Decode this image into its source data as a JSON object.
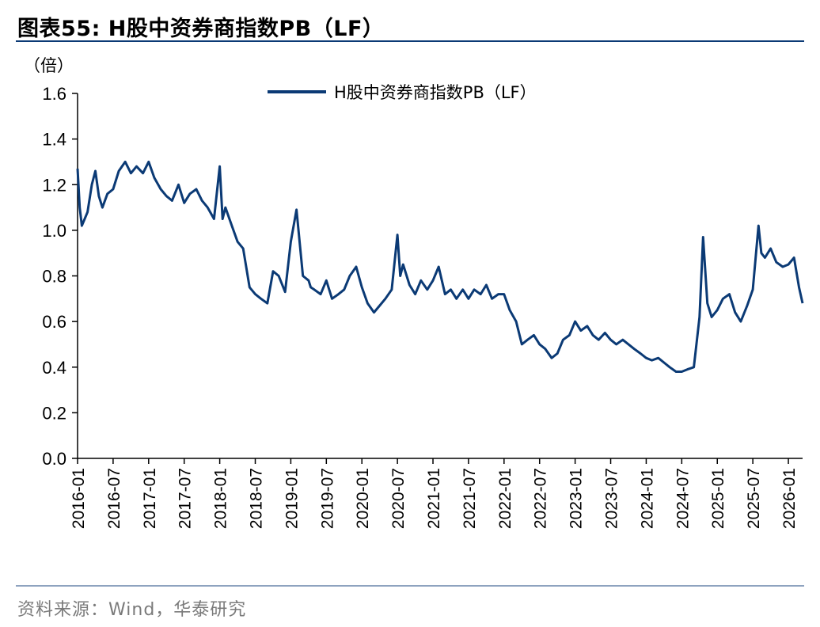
{
  "figure": {
    "title": "图表55:  H股中资券商指数PB（LF）",
    "source": "资料来源：Wind，华泰研究"
  },
  "chart_data": {
    "type": "line",
    "title": "H股中资券商指数PB（LF）",
    "ylabel": "（倍）",
    "xlabel": "",
    "ylim": [
      0.0,
      1.6
    ],
    "y_ticks": [
      "0.0",
      "0.2",
      "0.4",
      "0.6",
      "0.8",
      "1.0",
      "1.2",
      "1.4",
      "1.6"
    ],
    "x_ticks": [
      "2016-01",
      "2016-07",
      "2017-01",
      "2017-07",
      "2018-01",
      "2018-07",
      "2019-01",
      "2019-07",
      "2020-01",
      "2020-07",
      "2021-01",
      "2021-07",
      "2022-01",
      "2022-07",
      "2023-01",
      "2023-07",
      "2024-01",
      "2024-07",
      "2025-01",
      "2025-07",
      "2026-01"
    ],
    "x_range": [
      2016.0,
      2026.2
    ],
    "legend": "top-center",
    "color": "#0b3a75",
    "series": [
      {
        "name": "H股中资券商指数PB（LF）",
        "x": [
          2016.0,
          2016.03,
          2016.06,
          2016.1,
          2016.14,
          2016.2,
          2016.25,
          2016.3,
          2016.35,
          2016.42,
          2016.5,
          2016.58,
          2016.67,
          2016.75,
          2016.83,
          2016.92,
          2017.0,
          2017.08,
          2017.17,
          2017.25,
          2017.33,
          2017.42,
          2017.5,
          2017.58,
          2017.67,
          2017.75,
          2017.83,
          2017.92,
          2018.0,
          2018.04,
          2018.08,
          2018.17,
          2018.25,
          2018.33,
          2018.42,
          2018.5,
          2018.58,
          2018.67,
          2018.75,
          2018.83,
          2018.92,
          2019.0,
          2019.08,
          2019.17,
          2019.25,
          2019.28,
          2019.33,
          2019.42,
          2019.5,
          2019.58,
          2019.67,
          2019.75,
          2019.83,
          2019.92,
          2020.0,
          2020.08,
          2020.17,
          2020.25,
          2020.33,
          2020.42,
          2020.5,
          2020.54,
          2020.58,
          2020.67,
          2020.75,
          2020.83,
          2020.92,
          2021.0,
          2021.08,
          2021.17,
          2021.25,
          2021.33,
          2021.42,
          2021.5,
          2021.58,
          2021.67,
          2021.75,
          2021.83,
          2021.92,
          2022.0,
          2022.08,
          2022.17,
          2022.25,
          2022.33,
          2022.42,
          2022.5,
          2022.58,
          2022.67,
          2022.75,
          2022.83,
          2022.92,
          2023.0,
          2023.08,
          2023.17,
          2023.25,
          2023.33,
          2023.42,
          2023.5,
          2023.58,
          2023.67,
          2023.75,
          2023.83,
          2023.92,
          2024.0,
          2024.08,
          2024.17,
          2024.25,
          2024.33,
          2024.42,
          2024.5,
          2024.58,
          2024.67,
          2024.75,
          2024.8,
          2024.86,
          2024.92,
          2025.0,
          2025.08,
          2025.17,
          2025.25,
          2025.33,
          2025.42,
          2025.5,
          2025.58,
          2025.62,
          2025.67,
          2025.75,
          2025.83,
          2025.92,
          2026.0,
          2026.08,
          2026.15,
          2026.2
        ],
        "values": [
          1.27,
          1.1,
          1.02,
          1.05,
          1.08,
          1.2,
          1.26,
          1.15,
          1.1,
          1.16,
          1.18,
          1.26,
          1.3,
          1.25,
          1.28,
          1.25,
          1.3,
          1.23,
          1.18,
          1.15,
          1.13,
          1.2,
          1.12,
          1.16,
          1.18,
          1.13,
          1.1,
          1.05,
          1.28,
          1.05,
          1.1,
          1.02,
          0.95,
          0.92,
          0.75,
          0.72,
          0.7,
          0.68,
          0.82,
          0.8,
          0.73,
          0.95,
          1.09,
          0.8,
          0.78,
          0.75,
          0.74,
          0.72,
          0.78,
          0.7,
          0.72,
          0.74,
          0.8,
          0.84,
          0.75,
          0.68,
          0.64,
          0.67,
          0.7,
          0.74,
          0.98,
          0.8,
          0.85,
          0.76,
          0.72,
          0.78,
          0.74,
          0.78,
          0.84,
          0.72,
          0.74,
          0.7,
          0.74,
          0.7,
          0.74,
          0.72,
          0.76,
          0.7,
          0.72,
          0.72,
          0.65,
          0.6,
          0.5,
          0.52,
          0.54,
          0.5,
          0.48,
          0.44,
          0.46,
          0.52,
          0.54,
          0.6,
          0.56,
          0.58,
          0.54,
          0.52,
          0.55,
          0.52,
          0.5,
          0.52,
          0.5,
          0.48,
          0.46,
          0.44,
          0.43,
          0.44,
          0.42,
          0.4,
          0.38,
          0.38,
          0.39,
          0.4,
          0.62,
          0.97,
          0.68,
          0.62,
          0.65,
          0.7,
          0.72,
          0.64,
          0.6,
          0.67,
          0.74,
          1.02,
          0.9,
          0.88,
          0.92,
          0.86,
          0.84,
          0.85,
          0.88,
          0.75,
          0.68
        ]
      }
    ]
  }
}
